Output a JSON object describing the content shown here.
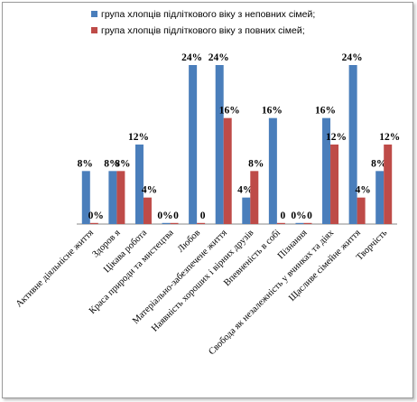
{
  "chart_data": {
    "type": "bar",
    "categories": [
      "Активне діяльнісне життя",
      "Здоров я",
      "Цікава робота",
      "Краса природи та мистецтва",
      "Любов",
      "Матеріально-забезпечене життя",
      "Наявність хороших і вірних друзів",
      "Впевненість в собі",
      "Пізнання",
      "Свобода як незалежність  у вчинках та діях",
      "Щасливе сімейне життя",
      "Творчість"
    ],
    "series": [
      {
        "name": "група хлопців підліткового віку з неповних сімей;",
        "color": "#4a7ebb",
        "values": [
          8,
          8,
          12,
          0,
          24,
          24,
          4,
          16,
          0,
          16,
          24,
          8
        ],
        "labels": [
          "8%",
          "8%",
          "12%",
          "0%",
          "24%",
          "24%",
          "4%",
          "16%",
          "0%",
          "16%",
          "24%",
          "8%"
        ]
      },
      {
        "name": "група хлопців підліткового віку з повних сімей;",
        "color": "#be4b48",
        "values": [
          0,
          8,
          4,
          0,
          0,
          16,
          8,
          0,
          0,
          12,
          4,
          12
        ],
        "labels": [
          "0%",
          "8%",
          "4%",
          "0",
          "0",
          "16%",
          "8%",
          "0",
          "0",
          "12%",
          "4%",
          "12%"
        ]
      }
    ],
    "ylim": [
      0,
      24
    ],
    "grid": false,
    "legend": "top"
  }
}
